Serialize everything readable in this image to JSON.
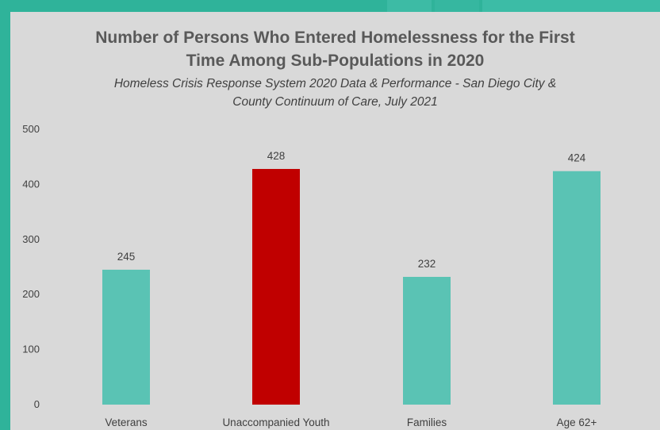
{
  "colors": {
    "background": "#d9d9d9",
    "frame": "#2fb39a",
    "bar_default": "#5ac3b4",
    "bar_highlight": "#c00000"
  },
  "chart_data": {
    "type": "bar",
    "title_lines": [
      "Number of Persons Who Entered Homelessness for the First",
      "Time Among Sub-Populations in 2020"
    ],
    "subtitle_lines": [
      "Homeless Crisis Response System 2020 Data & Performance - San Diego City &",
      "County Continuum of Care, July 2021"
    ],
    "categories": [
      "Veterans",
      "Unaccompanied Youth",
      "Families",
      "Age 62+"
    ],
    "values": [
      245,
      428,
      232,
      424
    ],
    "highlight_index": 1,
    "ylim": [
      0,
      500
    ],
    "yticks": [
      0,
      100,
      200,
      300,
      400,
      500
    ],
    "grid": false,
    "legend": "none",
    "data_labels": true
  }
}
